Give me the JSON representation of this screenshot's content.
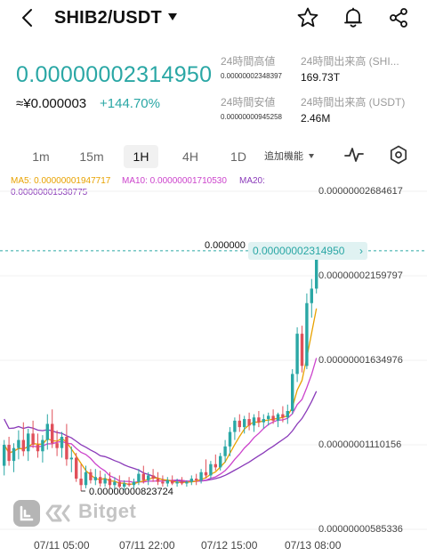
{
  "header": {
    "pair": "SHIB2/USDT",
    "icons": [
      "back-icon",
      "caret-down-icon",
      "star-icon",
      "bell-icon",
      "share-icon"
    ]
  },
  "price": {
    "last": "0.00000002314950",
    "fiat": "≈¥0.000003",
    "change": "+144.70%"
  },
  "stats": {
    "high_label": "24時間高値",
    "high_value": "0.00000002348397",
    "low_label": "24時間安値",
    "low_value": "0.00000000945258",
    "vol_base_label": "24時間出来高 (SHI...",
    "vol_base_value": "169.73T",
    "vol_quote_label": "24時間出来高 (USDT)",
    "vol_quote_value": "2.46M"
  },
  "timeframes": {
    "tabs": [
      "1m",
      "15m",
      "1H",
      "4H",
      "1D"
    ],
    "active": "1H",
    "more": "追加機能"
  },
  "ma": {
    "ma5": "MA5: 0.00000001947717",
    "ma10": "MA10: 0.00000001710530",
    "ma20_label": "MA20:",
    "ma20_value": "0.00000001530775",
    "ma5_color": "#e8a200",
    "ma10_color": "#cc44cc",
    "ma20_color": "#8a3ab9"
  },
  "chart_data": {
    "type": "candlestick",
    "y_labels": [
      "0.00000002684617",
      "0.00000002159797",
      "0.00000001634976",
      "0.00000001110156",
      "0.00000000585336"
    ],
    "x_labels": [
      "07/11 05:00",
      "07/11 22:00",
      "07/12 15:00",
      "07/13 08:00"
    ],
    "current_price_tag": "0.00000002314950",
    "current_price_clipped": "0.000000",
    "low_marker": "0.00000000823724",
    "up_color": "#2aa7a5",
    "down_color": "#e0505a",
    "candles": [
      {
        "o": 0.98,
        "h": 1.14,
        "l": 0.92,
        "c": 1.11
      },
      {
        "o": 1.11,
        "h": 1.16,
        "l": 0.98,
        "c": 1.01
      },
      {
        "o": 1.01,
        "h": 1.12,
        "l": 0.94,
        "c": 1.09
      },
      {
        "o": 1.09,
        "h": 1.2,
        "l": 1.02,
        "c": 1.14
      },
      {
        "o": 1.14,
        "h": 1.25,
        "l": 1.04,
        "c": 1.07
      },
      {
        "o": 1.07,
        "h": 1.21,
        "l": 1.01,
        "c": 1.18
      },
      {
        "o": 1.18,
        "h": 1.26,
        "l": 1.09,
        "c": 1.11
      },
      {
        "o": 1.11,
        "h": 1.18,
        "l": 1.03,
        "c": 1.07
      },
      {
        "o": 1.07,
        "h": 1.17,
        "l": 1.0,
        "c": 1.14
      },
      {
        "o": 1.14,
        "h": 1.3,
        "l": 1.08,
        "c": 1.24
      },
      {
        "o": 1.24,
        "h": 1.33,
        "l": 1.09,
        "c": 1.12
      },
      {
        "o": 1.12,
        "h": 1.2,
        "l": 1.04,
        "c": 1.09
      },
      {
        "o": 1.09,
        "h": 1.19,
        "l": 1.03,
        "c": 1.16
      },
      {
        "o": 1.16,
        "h": 1.24,
        "l": 0.98,
        "c": 1.02
      },
      {
        "o": 1.02,
        "h": 1.1,
        "l": 0.94,
        "c": 1.03
      },
      {
        "o": 1.03,
        "h": 1.06,
        "l": 0.88,
        "c": 0.9
      },
      {
        "o": 0.9,
        "h": 0.99,
        "l": 0.823,
        "c": 0.86
      },
      {
        "o": 0.86,
        "h": 0.98,
        "l": 0.84,
        "c": 0.94
      },
      {
        "o": 0.94,
        "h": 0.96,
        "l": 0.87,
        "c": 0.89
      },
      {
        "o": 0.89,
        "h": 0.96,
        "l": 0.86,
        "c": 0.91
      },
      {
        "o": 0.91,
        "h": 0.95,
        "l": 0.85,
        "c": 0.87
      },
      {
        "o": 0.87,
        "h": 0.93,
        "l": 0.85,
        "c": 0.9
      },
      {
        "o": 0.9,
        "h": 0.94,
        "l": 0.84,
        "c": 0.86
      },
      {
        "o": 0.86,
        "h": 0.91,
        "l": 0.83,
        "c": 0.88
      },
      {
        "o": 0.88,
        "h": 0.92,
        "l": 0.84,
        "c": 0.85
      },
      {
        "o": 0.85,
        "h": 0.89,
        "l": 0.83,
        "c": 0.87
      },
      {
        "o": 0.87,
        "h": 0.91,
        "l": 0.85,
        "c": 0.86
      },
      {
        "o": 0.86,
        "h": 0.9,
        "l": 0.84,
        "c": 0.88
      },
      {
        "o": 0.88,
        "h": 0.96,
        "l": 0.86,
        "c": 0.93
      },
      {
        "o": 0.93,
        "h": 0.98,
        "l": 0.87,
        "c": 0.89
      },
      {
        "o": 0.89,
        "h": 0.94,
        "l": 0.86,
        "c": 0.92
      },
      {
        "o": 0.92,
        "h": 0.96,
        "l": 0.88,
        "c": 0.9
      },
      {
        "o": 0.9,
        "h": 0.94,
        "l": 0.86,
        "c": 0.88
      },
      {
        "o": 0.88,
        "h": 0.92,
        "l": 0.85,
        "c": 0.87
      },
      {
        "o": 0.87,
        "h": 0.91,
        "l": 0.85,
        "c": 0.89
      },
      {
        "o": 0.89,
        "h": 0.92,
        "l": 0.86,
        "c": 0.87
      },
      {
        "o": 0.87,
        "h": 0.9,
        "l": 0.85,
        "c": 0.88
      },
      {
        "o": 0.88,
        "h": 0.91,
        "l": 0.86,
        "c": 0.87
      },
      {
        "o": 0.87,
        "h": 0.89,
        "l": 0.85,
        "c": 0.88
      },
      {
        "o": 0.88,
        "h": 0.92,
        "l": 0.86,
        "c": 0.9
      },
      {
        "o": 0.9,
        "h": 0.93,
        "l": 0.86,
        "c": 0.89
      },
      {
        "o": 0.89,
        "h": 0.96,
        "l": 0.87,
        "c": 0.94
      },
      {
        "o": 0.94,
        "h": 1.02,
        "l": 0.9,
        "c": 0.92
      },
      {
        "o": 0.92,
        "h": 1.01,
        "l": 0.9,
        "c": 0.99
      },
      {
        "o": 0.99,
        "h": 1.05,
        "l": 0.95,
        "c": 0.97
      },
      {
        "o": 0.97,
        "h": 1.06,
        "l": 0.95,
        "c": 1.04
      },
      {
        "o": 1.04,
        "h": 1.14,
        "l": 1.0,
        "c": 1.1
      },
      {
        "o": 1.1,
        "h": 1.22,
        "l": 1.04,
        "c": 1.19
      },
      {
        "o": 1.19,
        "h": 1.28,
        "l": 1.14,
        "c": 1.26
      },
      {
        "o": 1.26,
        "h": 1.3,
        "l": 1.19,
        "c": 1.22
      },
      {
        "o": 1.22,
        "h": 1.29,
        "l": 1.18,
        "c": 1.27
      },
      {
        "o": 1.27,
        "h": 1.31,
        "l": 1.2,
        "c": 1.23
      },
      {
        "o": 1.23,
        "h": 1.3,
        "l": 1.19,
        "c": 1.28
      },
      {
        "o": 1.28,
        "h": 1.32,
        "l": 1.22,
        "c": 1.25
      },
      {
        "o": 1.25,
        "h": 1.3,
        "l": 1.21,
        "c": 1.27
      },
      {
        "o": 1.27,
        "h": 1.31,
        "l": 1.23,
        "c": 1.29
      },
      {
        "o": 1.29,
        "h": 1.33,
        "l": 1.24,
        "c": 1.26
      },
      {
        "o": 1.26,
        "h": 1.31,
        "l": 1.22,
        "c": 1.3
      },
      {
        "o": 1.3,
        "h": 1.35,
        "l": 1.25,
        "c": 1.28
      },
      {
        "o": 1.28,
        "h": 1.36,
        "l": 1.24,
        "c": 1.32
      },
      {
        "o": 1.32,
        "h": 1.58,
        "l": 1.3,
        "c": 1.55
      },
      {
        "o": 1.55,
        "h": 1.84,
        "l": 1.5,
        "c": 1.8
      },
      {
        "o": 1.8,
        "h": 1.85,
        "l": 1.56,
        "c": 1.6
      },
      {
        "o": 1.6,
        "h": 2.05,
        "l": 1.58,
        "c": 1.99
      },
      {
        "o": 1.99,
        "h": 2.14,
        "l": 1.9,
        "c": 2.08
      },
      {
        "o": 2.08,
        "h": 2.35,
        "l": 2.05,
        "c": 2.315
      }
    ]
  },
  "watermark": "Bitget"
}
